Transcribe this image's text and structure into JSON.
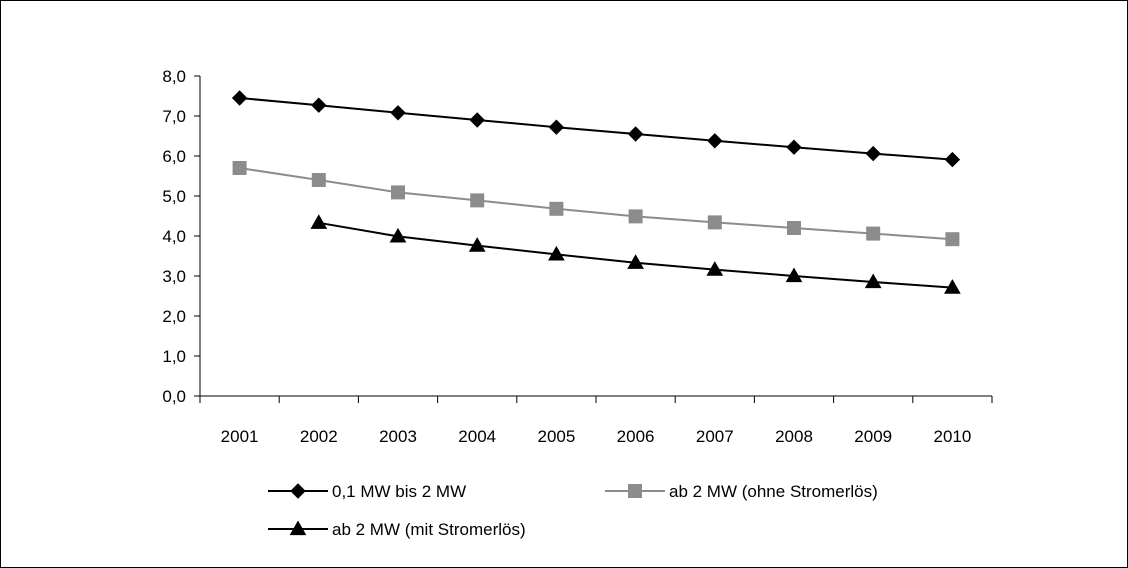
{
  "chart_data": {
    "type": "line",
    "title": "",
    "xlabel": "",
    "ylabel": "",
    "categories": [
      "2001",
      "2002",
      "2003",
      "2004",
      "2005",
      "2006",
      "2007",
      "2008",
      "2009",
      "2010"
    ],
    "ylim": [
      0,
      8
    ],
    "yticks": [
      "0,0",
      "1,0",
      "2,0",
      "3,0",
      "4,0",
      "5,0",
      "6,0",
      "7,0",
      "8,0"
    ],
    "grid": false,
    "legend_position": "bottom",
    "series": [
      {
        "name": "0,1 MW bis 2 MW",
        "marker": "diamond",
        "color": "#000000",
        "values": [
          7.45,
          7.27,
          7.08,
          6.9,
          6.72,
          6.55,
          6.38,
          6.22,
          6.06,
          5.91
        ]
      },
      {
        "name": "ab 2 MW (ohne Stromerlös)",
        "marker": "square",
        "color": "#8c8c8c",
        "values": [
          5.7,
          5.4,
          5.09,
          4.89,
          4.68,
          4.49,
          4.34,
          4.2,
          4.06,
          3.92
        ]
      },
      {
        "name": "ab 2 MW (mit Stromerlös)",
        "marker": "triangle",
        "color": "#000000",
        "values": [
          null,
          4.33,
          3.99,
          3.76,
          3.54,
          3.33,
          3.16,
          3.0,
          2.85,
          2.71
        ]
      }
    ]
  }
}
